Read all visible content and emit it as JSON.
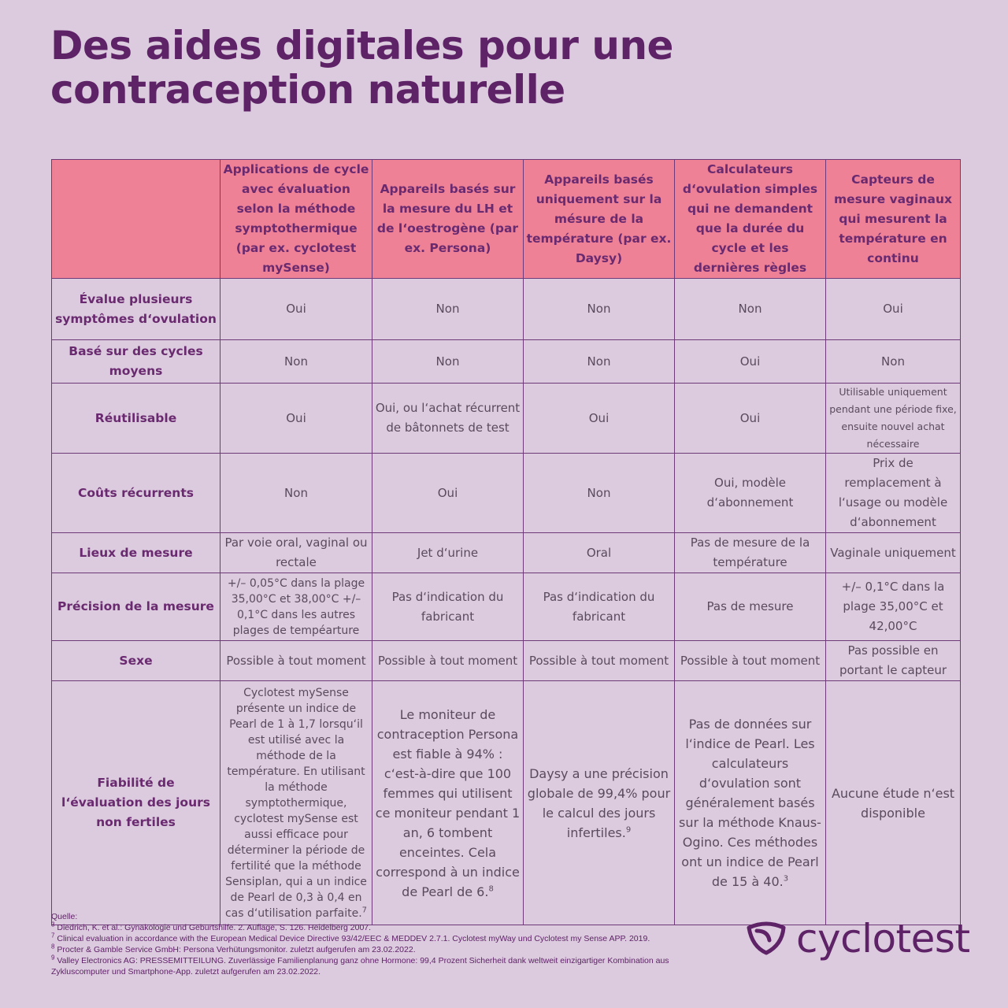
{
  "title": {
    "line1": "Des aides digitales pour une",
    "line2": "contraception naturelle"
  },
  "table": {
    "columns": [
      "",
      "Applications de cycle avec évaluation selon la méthode symptothermique (par ex. cyclotest mySense)",
      "Appareils basés sur la mesure du LH et de l‘oestrogène (par ex. Persona)",
      "Appareils basés uniquement sur la mésure de la température (par ex. Daysy)",
      "Calculateurs d‘ovulation simples qui ne demandent que la durée du cycle et les dernières règles",
      "Capteurs de mesure vaginaux qui mesurent la température en continu"
    ],
    "rows": [
      {
        "label": "Évalue plusieurs symptômes d‘ovulation",
        "cells": [
          "Oui",
          "Non",
          "Non",
          "Non",
          "Oui"
        ]
      },
      {
        "label": "Basé sur des cycles moyens",
        "cells": [
          "Non",
          "Non",
          "Non",
          "Oui",
          "Non"
        ]
      },
      {
        "label": "Réutilisable",
        "cells": [
          "Oui",
          "Oui, ou l‘achat récurrent de bâtonnets de test",
          "Oui",
          "Oui",
          "Utilisable uniquement pendant une période fixe, ensuite nouvel achat nécessaire"
        ]
      },
      {
        "label": "Coûts récurrents",
        "cells": [
          "Non",
          "Oui",
          "Non",
          "Oui, modèle d‘abonnement",
          "Prix de remplacement à l‘usage ou modèle d‘abonnement"
        ]
      },
      {
        "label": "Lieux de mesure",
        "cells": [
          "Par voie oral, vaginal ou rectale",
          "Jet d‘urine",
          "Oral",
          "Pas de mesure de la température",
          "Vaginale uniquement"
        ]
      },
      {
        "label": "Précision de la mesure",
        "cells": [
          "+/– 0,05°C dans la plage 35,00°C et 38,00°C +/– 0,1°C dans les autres plages de tempéarture",
          "Pas d‘indication du fabricant",
          "Pas d‘indication du fabricant",
          "Pas de mesure",
          "+/– 0,1°C dans la plage 35,00°C et 42,00°C"
        ]
      },
      {
        "label": "Sexe",
        "cells": [
          "Possible à tout moment",
          "Possible à tout moment",
          "Possible à tout moment",
          "Possible à tout moment",
          "Pas possible en portant le capteur"
        ]
      },
      {
        "label": "Fiabilité de l‘évaluation des jours non fertiles",
        "cells": [
          "Cyclotest mySense présente un indice de Pearl de 1 à 1,7 lorsqu‘il est utilisé avec la méthode de la température. En utilisant la méthode symptothermique, cyclotest mySense est aussi efficace pour déterminer la période de fertilité que la méthode Sensiplan, qui a un indice de Pearl de 0,3 à 0,4 en cas d‘utilisation parfaite.",
          "Le moniteur de contraception Persona est fiable à 94% : c‘est-à-dire que 100 femmes qui utilisent ce moniteur pendant 1 an, 6 tombent enceintes. Cela correspond à un indice de Pearl de 6.",
          "Daysy a une précision globale de 99,4% pour le calcul des jours infertiles.",
          "Pas de données sur l‘indice de Pearl. Les calculateurs d‘ovulation sont généralement basés sur la méthode Knaus-Ogino. Ces méthodes ont un indice de Pearl de 15 à 40.",
          "Aucune étude n‘est disponible"
        ],
        "refs": [
          "7",
          "8",
          "9",
          "3",
          ""
        ]
      }
    ]
  },
  "footer": {
    "heading": "Quelle:",
    "sources": [
      {
        "n": "3",
        "text": "Diedrich, K. et al.: Gynäkologie und Geburtshilfe. 2. Auflage, S. 126. Heidelberg 2007."
      },
      {
        "n": "7",
        "text": "Clinical evaluation in accordance with the European Medical Device Directive 93/42/EEC & MEDDEV 2.7.1. Cyclotest myWay und Cyclotest my Sense APP. 2019."
      },
      {
        "n": "8",
        "text": "Procter & Gamble Service GmbH: Persona Verhütungsmonitor. zuletzt aufgerufen am 23.02.2022."
      },
      {
        "n": "9",
        "text": "Valley Electronics AG: PRESSEMITTEILUNG. Zuverlässige Familienplanung ganz ohne Hormone: 99,4 Prozent Sicherheit dank weltweit einzigartiger Kombination aus Zykluscomputer und Smartphone-App. zuletzt aufgerufen am 23.02.2022."
      }
    ]
  },
  "logo": {
    "text": "cyclotest",
    "color": "#5e2266"
  },
  "colors": {
    "background": "#dccbdf",
    "header_fill": "#ef8197",
    "border": "#6e3a78",
    "title": "#5e2266"
  }
}
